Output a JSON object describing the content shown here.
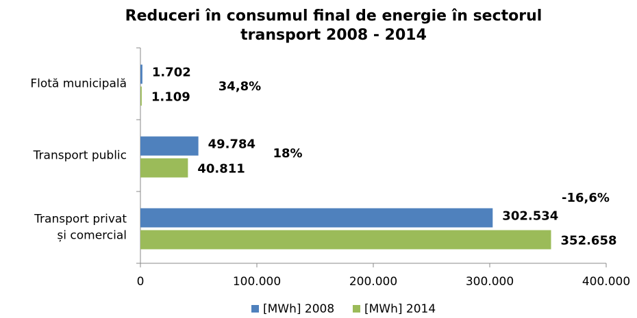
{
  "chart_data": {
    "type": "hbar",
    "title": "Reduceri în consumul final de energie în sectorul\ntransport 2008 - 2014",
    "categories": [
      "Flotă municipală",
      "Transport public",
      "Transport privat\nși comercial"
    ],
    "series": [
      {
        "name": "[MWh] 2008",
        "color": "#4f81bd",
        "label_color": "#1f6fc5",
        "values": [
          1702,
          49784,
          302534
        ],
        "value_labels": [
          "1.702",
          "49.784",
          "302.534"
        ]
      },
      {
        "name": "[MWh] 2014",
        "color": "#9bbb59",
        "label_color": "#808000",
        "values": [
          1109,
          40811,
          352658
        ],
        "value_labels": [
          "1.109",
          "40.811",
          "352.658"
        ]
      }
    ],
    "annotations": [
      "34,8%",
      "18%",
      "-16,6%"
    ],
    "annotation_color": "#e46c0a",
    "xlim": [
      0,
      400000
    ],
    "xticks": [
      0,
      {
        "value": 100000,
        "label": "100.000"
      },
      {
        "value": 200000,
        "label": "200.000"
      },
      {
        "value": 300000,
        "label": "300.000"
      },
      {
        "value": 400000,
        "label": "400.000"
      }
    ],
    "legend": "bottom"
  }
}
